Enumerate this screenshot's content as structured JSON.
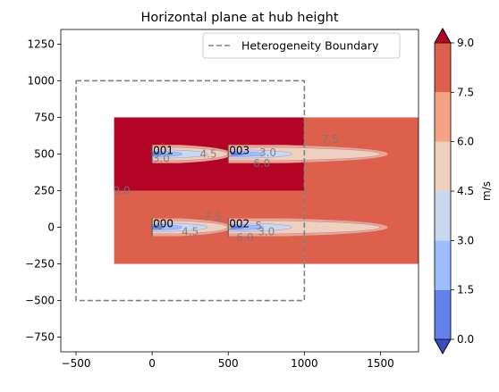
{
  "chart_data": {
    "type": "heatmap",
    "title": "Horizontal plane at hub height",
    "xlabel": "",
    "ylabel": "",
    "xlim": [
      -600,
      1750
    ],
    "ylim": [
      -850,
      1350
    ],
    "x_ticks": [
      "−500",
      "0",
      "500",
      "1000",
      "1500"
    ],
    "x_tick_values": [
      -500,
      0,
      500,
      1000,
      1500
    ],
    "y_ticks": [
      "−750",
      "−500",
      "−250",
      "0",
      "250",
      "500",
      "750",
      "1000",
      "1250"
    ],
    "y_tick_values": [
      -750,
      -500,
      -250,
      0,
      250,
      500,
      750,
      1000,
      1250
    ],
    "grid": false,
    "legend": {
      "placement": "upper-right",
      "entries": [
        {
          "label": "Heterogeneity Boundary",
          "style": "dashed",
          "color": "#808080"
        }
      ]
    },
    "heterogeneity_boundary": {
      "x": [
        -500,
        1000,
        1000,
        -500,
        -500
      ],
      "y": [
        1000,
        1000,
        -500,
        -500,
        1000
      ]
    },
    "domain": {
      "x": [
        -250,
        1750
      ],
      "y": [
        -250,
        750
      ]
    },
    "colorbar": {
      "label": "m/s",
      "levels": [
        0.0,
        1.5,
        3.0,
        4.5,
        6.0,
        7.5,
        9.0
      ],
      "tick_labels": [
        "0.0",
        "1.5",
        "3.0",
        "4.5",
        "6.0",
        "7.5",
        "9.0"
      ],
      "colors": [
        "#6282ea",
        "#9dbdfe",
        "#cad8ef",
        "#efcfbf",
        "#f4a385",
        "#dd604d"
      ],
      "extend_min_color": "#3b4cc0",
      "extend_max_color": "#b40426"
    },
    "freestream_regions": [
      {
        "name": "inside-boundary",
        "x": [
          -250,
          1000
        ],
        "y": [
          250,
          750
        ],
        "speed": ">9.0",
        "color": "#b40426"
      },
      {
        "name": "inside-boundary-lower",
        "x": [
          -250,
          1000
        ],
        "y": [
          -250,
          250
        ],
        "speed": "7.5-9.0",
        "color": "#dd604d"
      },
      {
        "name": "outside-boundary",
        "x": [
          1000,
          1750
        ],
        "y": [
          -250,
          750
        ],
        "speed": "7.5-9.0",
        "color": "#dd604d"
      }
    ],
    "turbines": [
      {
        "label": "000",
        "x": 0,
        "y": 0
      },
      {
        "label": "001",
        "x": 0,
        "y": 500
      },
      {
        "label": "002",
        "x": 500,
        "y": 0
      },
      {
        "label": "003",
        "x": 500,
        "y": 500
      }
    ],
    "contour_labels": [
      {
        "text": "9.0",
        "x": -200,
        "y": 250
      },
      {
        "text": "4.5",
        "x": 370,
        "y": 500
      },
      {
        "text": "3.0",
        "x": 60,
        "y": 470
      },
      {
        "text": "3.0",
        "x": 760,
        "y": 510
      },
      {
        "text": "6.0",
        "x": 720,
        "y": 435
      },
      {
        "text": "7.5",
        "x": 1170,
        "y": 600
      },
      {
        "text": "7.5",
        "x": 400,
        "y": 70
      },
      {
        "text": "4.5",
        "x": 250,
        "y": -30
      },
      {
        "text": "0",
        "x": 50,
        "y": 10
      },
      {
        "text": "5",
        "x": 700,
        "y": 10
      },
      {
        "text": "6.0",
        "x": 610,
        "y": -70
      },
      {
        "text": "3.0",
        "x": 750,
        "y": -30
      }
    ]
  }
}
